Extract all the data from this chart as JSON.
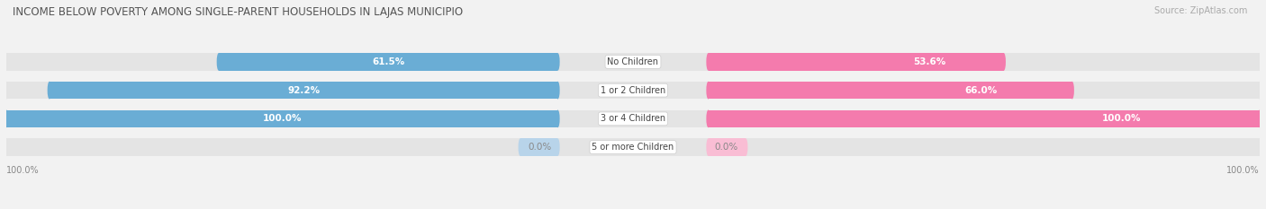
{
  "title": "INCOME BELOW POVERTY AMONG SINGLE-PARENT HOUSEHOLDS IN LAJAS MUNICIPIO",
  "source": "Source: ZipAtlas.com",
  "categories": [
    "No Children",
    "1 or 2 Children",
    "3 or 4 Children",
    "5 or more Children"
  ],
  "single_father": [
    61.5,
    92.2,
    100.0,
    0.0
  ],
  "single_mother": [
    53.6,
    66.0,
    100.0,
    0.0
  ],
  "father_color": "#6aadd5",
  "father_color_light": "#b8d4ea",
  "mother_color": "#f47bad",
  "mother_color_light": "#f9bdd4",
  "bg_color": "#f2f2f2",
  "bar_bg_color": "#e4e4e4",
  "bar_height": 0.62,
  "max_value": 100.0,
  "title_fontsize": 8.5,
  "label_fontsize": 7.5,
  "source_fontsize": 7,
  "legend_fontsize": 7.5,
  "axis_label_fontsize": 7,
  "title_color": "#555555",
  "label_color_white": "#ffffff",
  "label_color_gray": "#888888",
  "source_color": "#aaaaaa",
  "legend_color": "#666666",
  "axis_label_color": "#888888"
}
